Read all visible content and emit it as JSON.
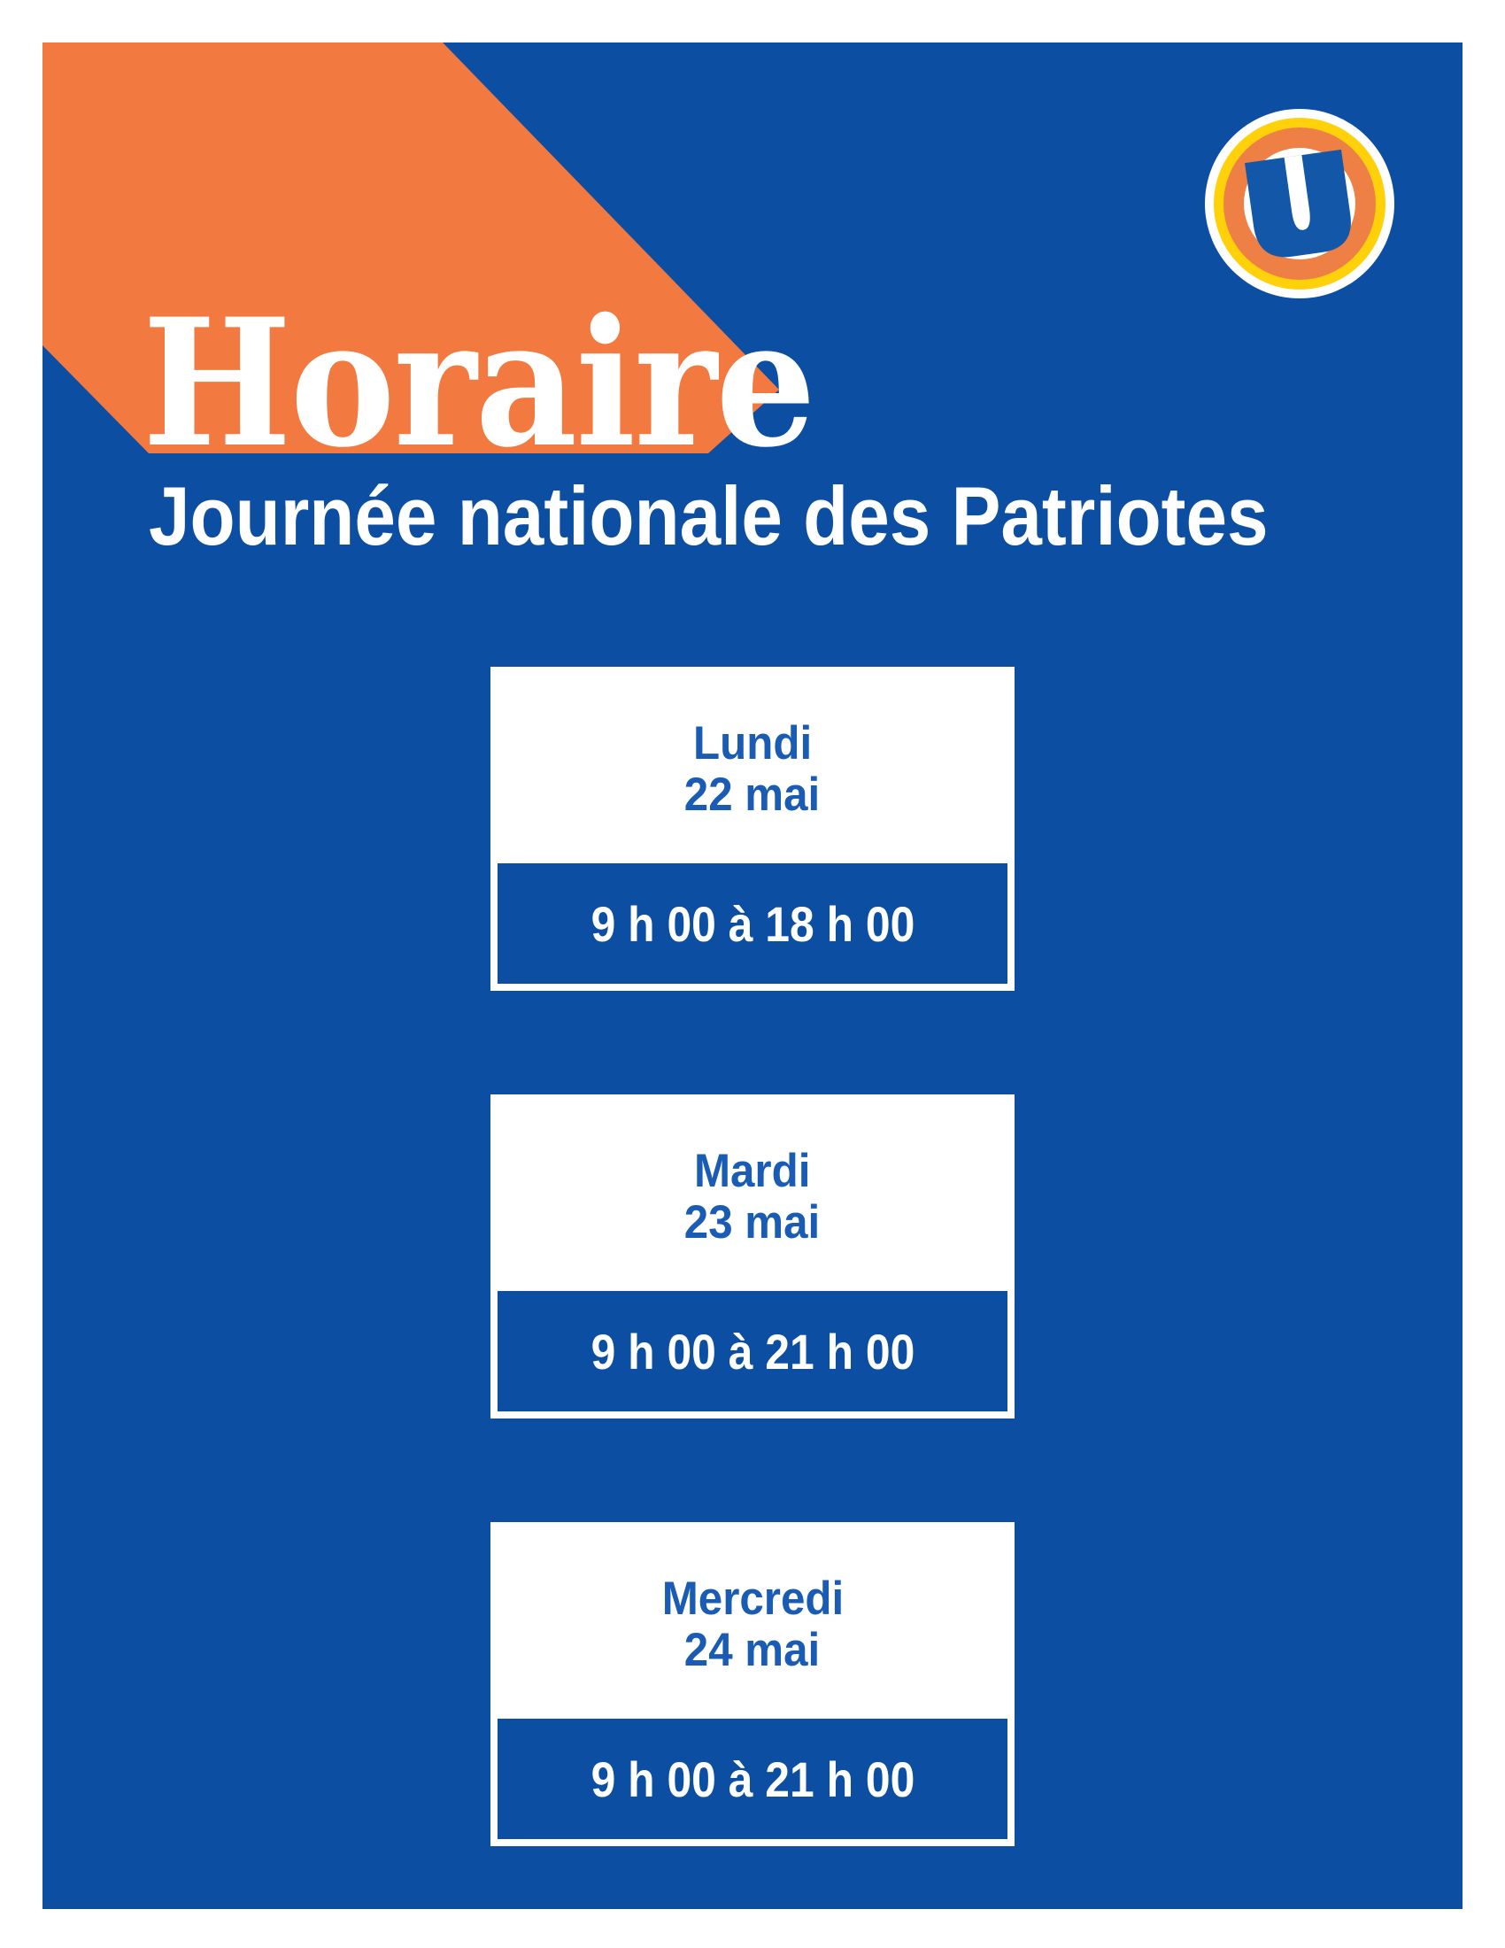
{
  "header": {
    "title": "Horaire",
    "subtitle": "Journée nationale des Patriotes"
  },
  "logo": {
    "letter": "U"
  },
  "schedule": [
    {
      "day": "Lundi",
      "date": "22 mai",
      "hours": "9 h 00 à 18 h 00"
    },
    {
      "day": "Mardi",
      "date": "23 mai",
      "hours": "9 h 00 à 21 h 00"
    },
    {
      "day": "Mercredi",
      "date": "24 mai",
      "hours": "9 h 00 à 21 h 00"
    }
  ],
  "layout_tops": [
    705,
    1188,
    1671
  ],
  "colors": {
    "background_blue": "#0C4EA2",
    "accent_orange": "#F2793F",
    "logo_yellow": "#FFD10A",
    "logo_ring_orange": "#EF8045",
    "logo_u_blue": "#1257A8",
    "day_text_blue": "#1A5CB4",
    "white": "#FFFFFF"
  }
}
